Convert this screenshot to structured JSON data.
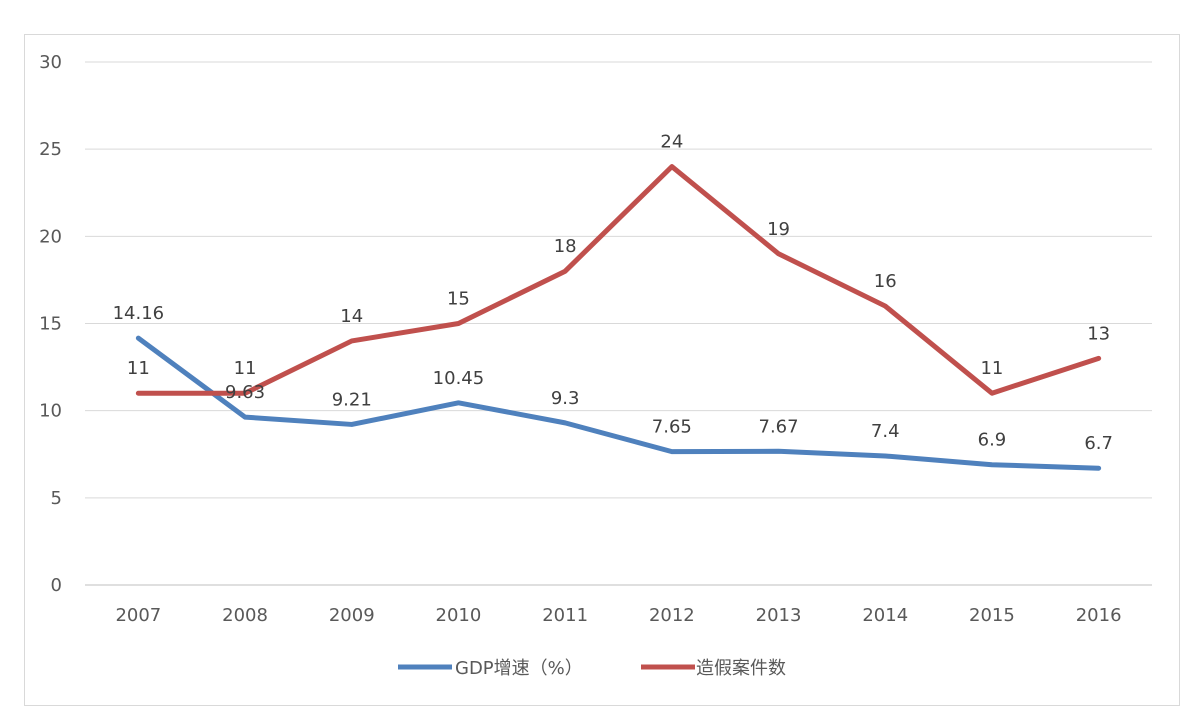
{
  "chart_data": {
    "type": "line",
    "categories": [
      "2007",
      "2008",
      "2009",
      "2010",
      "2011",
      "2012",
      "2013",
      "2014",
      "2015",
      "2016"
    ],
    "series": [
      {
        "name": "GDP增速（%）",
        "color": "#4f81bd",
        "values": [
          14.16,
          9.63,
          9.21,
          10.45,
          9.3,
          7.65,
          7.67,
          7.4,
          6.9,
          6.7
        ],
        "labels": [
          "14.16",
          "9.63",
          "9.21",
          "10.45",
          "9.3",
          "7.65",
          "7.67",
          "7.4",
          "6.9",
          "6.7"
        ]
      },
      {
        "name": "造假案件数",
        "color": "#c0504d",
        "values": [
          11,
          11,
          14,
          15,
          18,
          24,
          19,
          16,
          11,
          13
        ],
        "labels": [
          "11",
          "11",
          "14",
          "15",
          "18",
          "24",
          "19",
          "16",
          "11",
          "13"
        ]
      }
    ],
    "ylim": [
      0,
      30
    ],
    "yticks": [
      "0",
      "5",
      "10",
      "15",
      "20",
      "25",
      "30"
    ],
    "grid": true,
    "legend": "bottom",
    "title": "",
    "xlabel": "",
    "ylabel": ""
  }
}
